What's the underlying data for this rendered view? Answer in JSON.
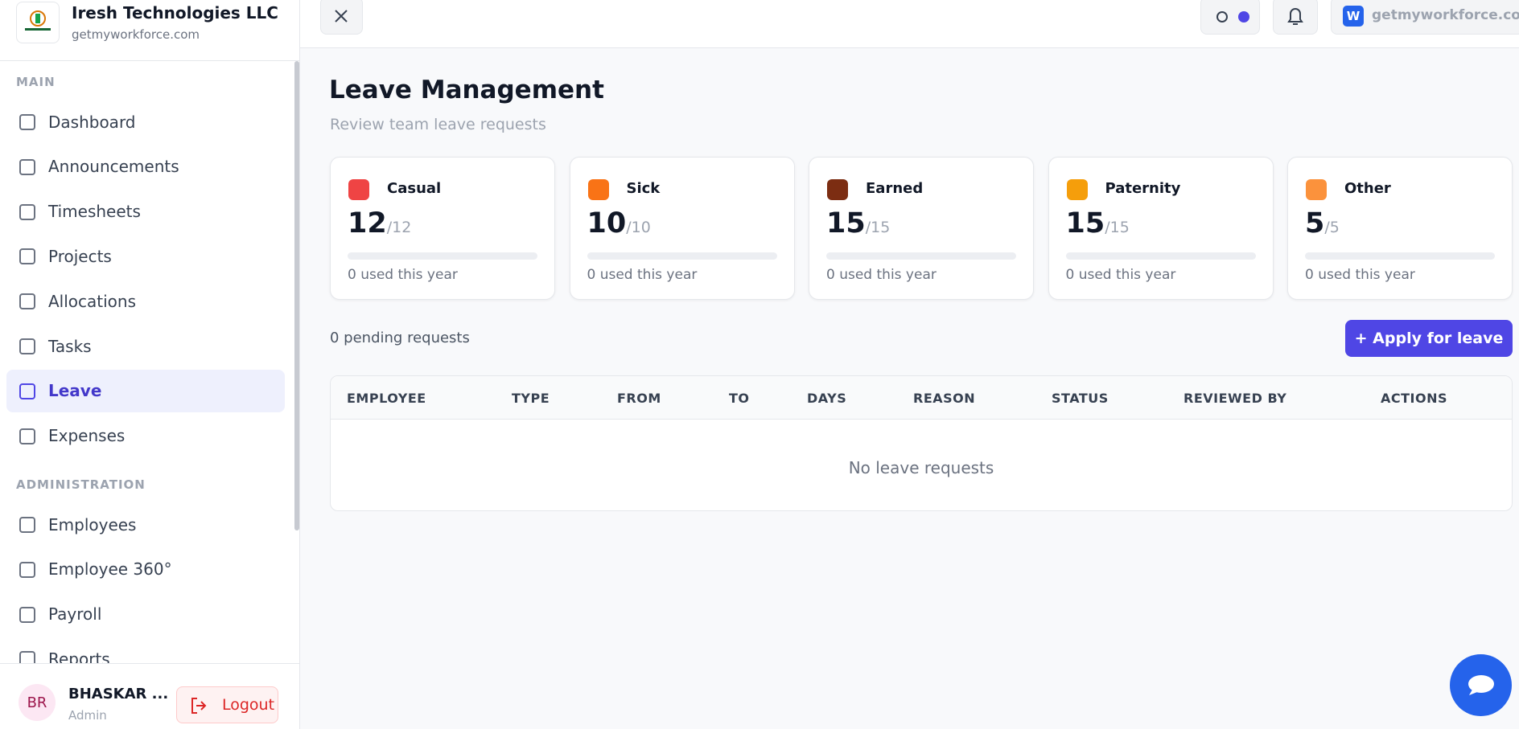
{
  "header": {
    "company": "Iresh Technologies LLC",
    "domain": "getmyworkforce.com"
  },
  "topbar": {
    "workspace_badge": "W",
    "workspace": "getmyworkforce.com"
  },
  "sidebar": {
    "sections": [
      {
        "title": "MAIN",
        "items": [
          "Dashboard",
          "Announcements",
          "Timesheets",
          "Projects",
          "Allocations",
          "Tasks",
          "Leave",
          "Expenses"
        ]
      },
      {
        "title": "ADMINISTRATION",
        "items": [
          "Employees",
          "Employee 360°",
          "Payroll",
          "Reports"
        ]
      }
    ],
    "active": "Leave",
    "user": {
      "initials": "BR",
      "name": "BHASKAR ...",
      "role": "Admin"
    },
    "logout": "Logout"
  },
  "page": {
    "title": "Leave Management",
    "subtitle": "Review team leave requests"
  },
  "cards": [
    {
      "name": "Casual",
      "available": 12,
      "total": "/12",
      "used": "0 used this year"
    },
    {
      "name": "Sick",
      "available": 10,
      "total": "/10",
      "used": "0 used this year"
    },
    {
      "name": "Earned",
      "available": 15,
      "total": "/15",
      "used": "0 used this year"
    },
    {
      "name": "Paternity",
      "available": 15,
      "total": "/15",
      "used": "0 used this year"
    },
    {
      "name": "Other",
      "available": 5,
      "total": "/5",
      "used": "0 used this year"
    }
  ],
  "pending": "0 pending requests",
  "apply_button": "+ Apply for leave",
  "table": {
    "columns": [
      "EMPLOYEE",
      "TYPE",
      "FROM",
      "TO",
      "DAYS",
      "REASON",
      "STATUS",
      "REVIEWED BY",
      "ACTIONS"
    ],
    "empty": "No leave requests"
  }
}
